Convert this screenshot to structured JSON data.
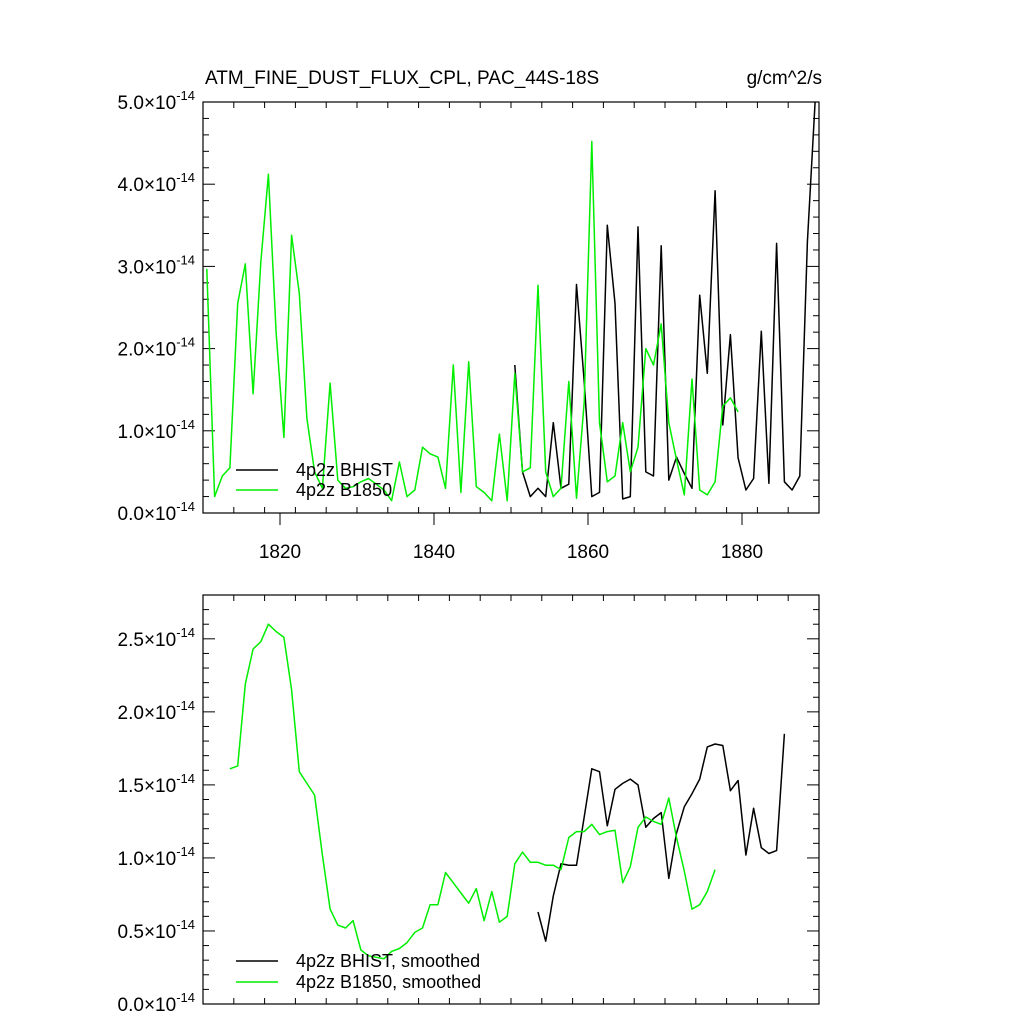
{
  "chart_data": [
    {
      "type": "line",
      "title": "ATM_FINE_DUST_FLUX_CPL, PAC_44S-18S",
      "units": "g/cm^2/s",
      "xlim": [
        1810,
        1890
      ],
      "ylim": [
        0,
        5e-14
      ],
      "xticks": [
        1820,
        1840,
        1860,
        1880
      ],
      "ytick_labels": [
        {
          "mant": "0.0",
          "exp": "-14",
          "value": 0
        },
        {
          "mant": "1.0",
          "exp": "-14",
          "value": 1e-14
        },
        {
          "mant": "2.0",
          "exp": "-14",
          "value": 2e-14
        },
        {
          "mant": "3.0",
          "exp": "-14",
          "value": 3e-14
        },
        {
          "mant": "4.0",
          "exp": "-14",
          "value": 4e-14
        },
        {
          "mant": "5.0",
          "exp": "-14",
          "value": 5e-14
        }
      ],
      "series": [
        {
          "name": "4p2z BHIST",
          "color": "#000000",
          "x": [
            1850.5,
            1851.5,
            1852.5,
            1853.5,
            1854.5,
            1855.5,
            1856.5,
            1857.5,
            1858.5,
            1859.5,
            1860.5,
            1861.5,
            1862.5,
            1863.5,
            1864.5,
            1865.5,
            1866.5,
            1867.5,
            1868.5,
            1869.5,
            1870.5,
            1871.5,
            1872.5,
            1873.5,
            1874.5,
            1875.5,
            1876.5,
            1877.5,
            1878.5,
            1879.5,
            1880.5,
            1881.5,
            1882.5,
            1883.5,
            1884.5,
            1885.5,
            1886.5,
            1887.5,
            1888.5,
            1889.5
          ],
          "y": [
            1.8e-14,
            5e-15,
            2e-15,
            3e-15,
            2e-15,
            1.1e-14,
            3e-15,
            3.5e-15,
            2.78e-14,
            1.6e-14,
            2e-15,
            2.5e-15,
            3.5e-14,
            2.55e-14,
            1.7e-15,
            2e-15,
            3.48e-14,
            5e-15,
            4.5e-15,
            3.25e-14,
            4e-15,
            6.8e-15,
            4.8e-15,
            3e-15,
            2.65e-14,
            1.7e-14,
            3.92e-14,
            1.07e-14,
            2.17e-14,
            6.7e-15,
            2.8e-15,
            4.2e-15,
            2.21e-14,
            3.6e-15,
            3.28e-14,
            3.8e-15,
            2.8e-15,
            4.5e-15,
            3.3e-14,
            5e-14
          ]
        },
        {
          "name": "4p2z B1850",
          "color": "#00ee00",
          "x": [
            1810.5,
            1811.5,
            1812.5,
            1813.5,
            1814.5,
            1815.5,
            1816.5,
            1817.5,
            1818.5,
            1819.5,
            1820.5,
            1821.5,
            1822.5,
            1823.5,
            1824.5,
            1825.5,
            1826.5,
            1827.5,
            1828.5,
            1829.5,
            1830.5,
            1831.5,
            1832.5,
            1833.5,
            1834.5,
            1835.5,
            1836.5,
            1837.5,
            1838.5,
            1839.5,
            1840.5,
            1841.5,
            1842.5,
            1843.5,
            1844.5,
            1845.5,
            1846.5,
            1847.5,
            1848.5,
            1849.5,
            1850.5,
            1851.5,
            1852.5,
            1853.5,
            1854.5,
            1855.5,
            1856.5,
            1857.5,
            1858.5,
            1859.5,
            1860.5,
            1861.5,
            1862.5,
            1863.5,
            1864.5,
            1865.5,
            1866.5,
            1867.5,
            1868.5,
            1869.5,
            1870.5,
            1871.5,
            1872.5,
            1873.5,
            1874.5,
            1875.5,
            1876.5,
            1877.5,
            1878.5,
            1879.5
          ],
          "y": [
            2.97e-14,
            2e-15,
            4.5e-15,
            5.5e-15,
            2.55e-14,
            3.03e-14,
            1.45e-14,
            3.05e-14,
            4.12e-14,
            2.2e-14,
            9.2e-15,
            3.38e-14,
            2.67e-14,
            1.15e-14,
            5e-15,
            3e-15,
            1.58e-14,
            4e-15,
            3e-15,
            3.2e-15,
            3.8e-15,
            4.2e-15,
            3.5e-15,
            2.8e-15,
            1.5e-15,
            6.2e-15,
            2e-15,
            2.8e-15,
            8e-15,
            7.2e-15,
            6.8e-15,
            3e-15,
            1.8e-14,
            2.5e-15,
            1.84e-14,
            3.2e-15,
            2.5e-15,
            1.5e-15,
            9.6e-15,
            1.5e-15,
            1.7e-14,
            5e-15,
            5.5e-15,
            2.77e-14,
            5e-15,
            2e-15,
            3e-15,
            1.6e-14,
            1.8e-15,
            1.35e-14,
            4.52e-14,
            1.1e-14,
            3.8e-15,
            4.5e-15,
            1.1e-14,
            5e-15,
            8e-15,
            2e-14,
            1.8e-14,
            2.3e-14,
            1.1e-14,
            6.5e-15,
            2.2e-15,
            1.63e-14,
            2.8e-15,
            2.2e-15,
            3.8e-15,
            1.3e-14,
            1.4e-14,
            1.23e-14
          ]
        }
      ]
    },
    {
      "type": "line",
      "xlim": [
        1810,
        1890
      ],
      "ylim": [
        0,
        2.8e-14
      ],
      "xticks": [
        1820,
        1840,
        1860,
        1880
      ],
      "ytick_labels": [
        {
          "mant": "0.0",
          "exp": "-14",
          "value": 0
        },
        {
          "mant": "0.5",
          "exp": "-14",
          "value": 5e-15
        },
        {
          "mant": "1.0",
          "exp": "-14",
          "value": 1e-14
        },
        {
          "mant": "1.5",
          "exp": "-14",
          "value": 1.5e-14
        },
        {
          "mant": "2.0",
          "exp": "-14",
          "value": 2e-14
        },
        {
          "mant": "2.5",
          "exp": "-14",
          "value": 2.5e-14
        }
      ],
      "series": [
        {
          "name": "4p2z BHIST, smoothed",
          "color": "#000000",
          "x": [
            1853.5,
            1854.5,
            1855.5,
            1856.5,
            1857.5,
            1858.5,
            1859.5,
            1860.5,
            1861.5,
            1862.5,
            1863.5,
            1864.5,
            1865.5,
            1866.5,
            1867.5,
            1868.5,
            1869.5,
            1870.5,
            1871.5,
            1872.5,
            1873.5,
            1874.5,
            1875.5,
            1876.5,
            1877.5,
            1878.5,
            1879.5,
            1880.5,
            1881.5,
            1882.5,
            1883.5,
            1884.5,
            1885.5
          ],
          "y": [
            6.3e-15,
            4.3e-15,
            7.4e-15,
            9.6e-15,
            9.5e-15,
            9.5e-15,
            1.28e-14,
            1.61e-14,
            1.59e-14,
            1.22e-14,
            1.47e-14,
            1.51e-14,
            1.54e-14,
            1.5e-14,
            1.21e-14,
            1.27e-14,
            1.31e-14,
            8.6e-15,
            1.17e-14,
            1.35e-14,
            1.44e-14,
            1.54e-14,
            1.76e-14,
            1.78e-14,
            1.77e-14,
            1.46e-14,
            1.53e-14,
            1.02e-14,
            1.34e-14,
            1.07e-14,
            1.03e-14,
            1.05e-14,
            1.85e-14
          ]
        },
        {
          "name": "4p2z B1850, smoothed",
          "color": "#00ee00",
          "x": [
            1813.5,
            1814.5,
            1815.5,
            1816.5,
            1817.5,
            1818.5,
            1819.5,
            1820.5,
            1821.5,
            1822.5,
            1823.5,
            1824.5,
            1825.5,
            1826.5,
            1827.5,
            1828.5,
            1829.5,
            1830.5,
            1831.5,
            1832.5,
            1833.5,
            1834.5,
            1835.5,
            1836.5,
            1837.5,
            1838.5,
            1839.5,
            1840.5,
            1841.5,
            1842.5,
            1843.5,
            1844.5,
            1845.5,
            1846.5,
            1847.5,
            1848.5,
            1849.5,
            1850.5,
            1851.5,
            1852.5,
            1853.5,
            1854.5,
            1855.5,
            1856.5,
            1857.5,
            1858.5,
            1859.5,
            1860.5,
            1861.5,
            1862.5,
            1863.5,
            1864.5,
            1865.5,
            1866.5,
            1867.5,
            1868.5,
            1869.5,
            1870.5,
            1871.5,
            1872.5,
            1873.5,
            1874.5,
            1875.5,
            1876.5
          ],
          "y": [
            1.61e-14,
            1.63e-14,
            2.19e-14,
            2.43e-14,
            2.48e-14,
            2.6e-14,
            2.55e-14,
            2.51e-14,
            2.15e-14,
            1.59e-14,
            1.51e-14,
            1.43e-14,
            1.02e-14,
            6.5e-15,
            5.4e-15,
            5.2e-15,
            5.7e-15,
            3.7e-15,
            3.3e-15,
            3.2e-15,
            3.1e-15,
            3.6e-15,
            3.8e-15,
            4.2e-15,
            4.9e-15,
            5.2e-15,
            6.8e-15,
            6.8e-15,
            9e-15,
            8.3e-15,
            7.6e-15,
            6.9e-15,
            7.9e-15,
            5.7e-15,
            7.7e-15,
            5.6e-15,
            6e-15,
            9.6e-15,
            1.04e-14,
            9.7e-15,
            9.7e-15,
            9.5e-15,
            9.5e-15,
            9.2e-15,
            1.14e-14,
            1.18e-14,
            1.18e-14,
            1.23e-14,
            1.16e-14,
            1.18e-14,
            1.19e-14,
            8.3e-15,
            9.4e-15,
            1.21e-14,
            1.28e-14,
            1.25e-14,
            1.23e-14,
            1.41e-14,
            1.14e-14,
            9.1e-15,
            6.5e-15,
            6.8e-15,
            7.7e-15,
            9.2e-15
          ]
        }
      ]
    }
  ]
}
